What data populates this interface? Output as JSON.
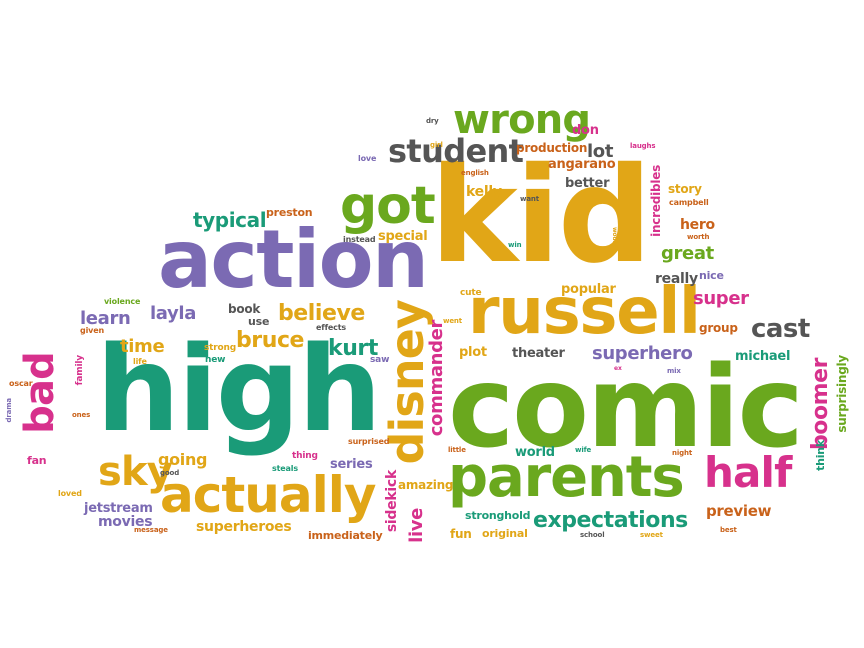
{
  "words": {
    "kid": "kid",
    "comic": "comic",
    "high": "high",
    "action": "action",
    "russell": "russell",
    "parents": "parents",
    "actually": "actually",
    "got": "got",
    "wrong": "wrong",
    "disney": "disney",
    "student": "student",
    "half": "half",
    "sky": "sky",
    "bad": "bad",
    "expectations": "expectations",
    "cast": "cast",
    "believe": "believe",
    "bruce": "bruce",
    "kurt": "kurt",
    "layla": "layla",
    "learn": "learn",
    "time": "time",
    "typical": "typical",
    "going": "going",
    "commander": "commander",
    "superhero": "superhero",
    "boomer": "boomer",
    "great": "great",
    "super": "super",
    "lot": "lot",
    "better": "better",
    "angarano": "angarano",
    "production": "production",
    "don": "don",
    "preston": "preston",
    "special": "special",
    "kelly": "kelly",
    "popular": "popular",
    "really": "really",
    "nice": "nice",
    "hero": "hero",
    "story": "story",
    "incredibles": "incredibles",
    "theater": "theater",
    "michael": "michael",
    "group": "group",
    "plot": "plot",
    "sidekick": "sidekick",
    "live": "live",
    "world": "world",
    "stronghold": "stronghold",
    "amazing": "amazing",
    "superheroes": "superheroes",
    "jetstream": "jetstream",
    "movies": "movies",
    "immediately": "immediately",
    "original": "original",
    "fun": "fun",
    "series": "series",
    "preview": "preview",
    "surprisingly": "surprisingly",
    "think": "think",
    "book": "book",
    "use": "use",
    "strong": "strong",
    "new": "new",
    "life": "life",
    "family": "family",
    "given": "given",
    "violence": "violence",
    "effects": "effects",
    "saw": "saw",
    "went": "went",
    "cute": "cute",
    "instead": "instead",
    "love": "love",
    "dry": "dry",
    "girl": "girl",
    "english": "english",
    "want": "want",
    "win": "win",
    "worth": "worth",
    "campbell": "campbell",
    "laughs": "laughs",
    "ones": "ones",
    "oscar": "oscar",
    "drama": "drama",
    "fan": "fan",
    "loved": "loved",
    "good": "good",
    "message": "message",
    "thing": "thing",
    "steals": "steals",
    "surprised": "surprised",
    "little": "little",
    "wife": "wife",
    "night": "night",
    "ex": "ex",
    "mix": "mix",
    "school": "school",
    "sweet": "sweet",
    "best": "best",
    "would": "would"
  }
}
